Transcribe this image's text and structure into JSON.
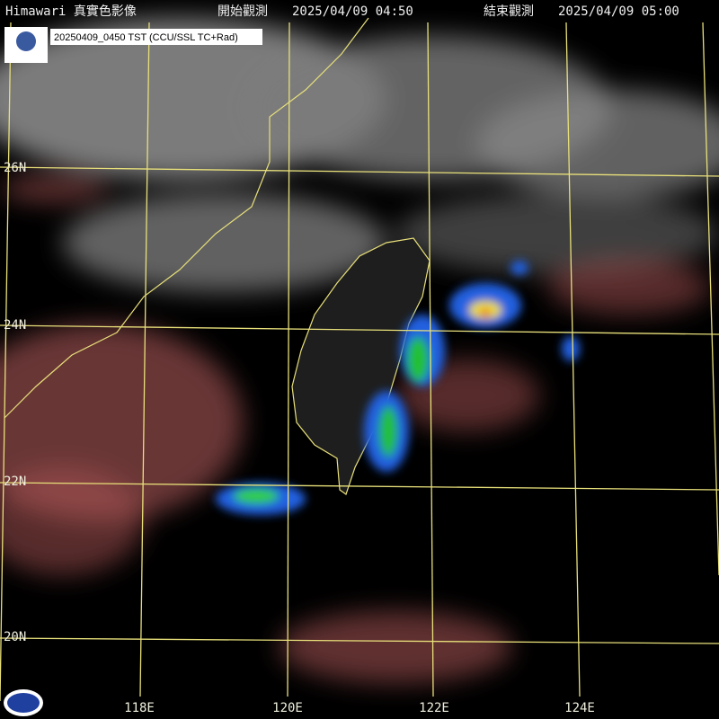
{
  "header": {
    "title": "Himawari 真實色影像",
    "start_label": "開始觀測",
    "start_time": "2025/04/09 04:50",
    "end_label": "結束觀測",
    "end_time": "2025/04/09 05:00"
  },
  "badge": {
    "text": "20250409_0450 TST (CCU/SSL TC+Rad)"
  },
  "grid": {
    "latitudes": [
      "26N",
      "24N",
      "22N",
      "20N"
    ],
    "longitudes": [
      "118E",
      "120E",
      "122E",
      "124E"
    ]
  }
}
